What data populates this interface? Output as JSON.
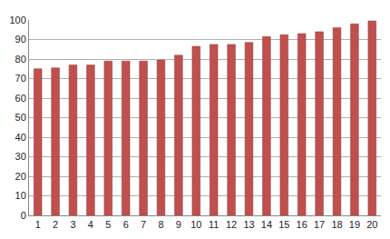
{
  "chart_data": {
    "type": "bar",
    "categories": [
      "1",
      "2",
      "3",
      "4",
      "5",
      "6",
      "7",
      "8",
      "9",
      "10",
      "11",
      "12",
      "13",
      "14",
      "15",
      "16",
      "17",
      "18",
      "19",
      "20"
    ],
    "values": [
      75,
      75.5,
      77,
      77,
      79,
      79,
      79,
      79.5,
      82,
      86.5,
      87.5,
      87.5,
      88.5,
      91.5,
      92.5,
      93,
      94,
      96,
      98,
      99.5
    ],
    "color": "#c0504d",
    "ylim": [
      0,
      100
    ],
    "yticks": [
      0,
      10,
      20,
      30,
      40,
      50,
      60,
      70,
      80,
      90,
      100
    ],
    "grid": true
  }
}
